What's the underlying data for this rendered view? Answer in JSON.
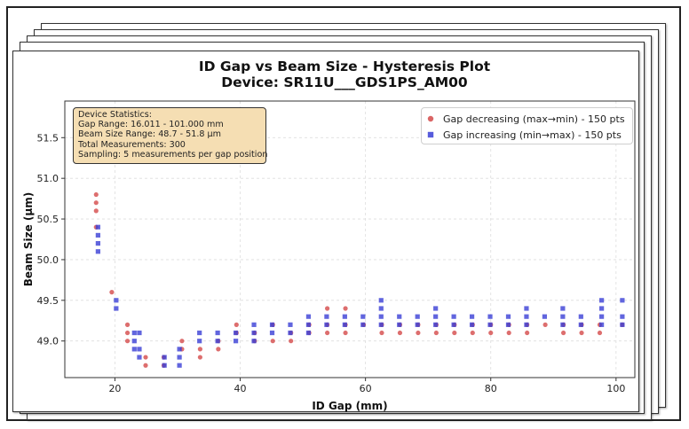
{
  "title": "ID Gap vs Beam Size - Hysteresis Plot",
  "subtitle": "Device: SR11U___GDS1PS_AM00",
  "stats": {
    "heading": "Device Statistics:",
    "lines": [
      "Gap Range: 16.011 - 101.000 mm",
      "Beam Size Range: 48.7 - 51.8 μm",
      "Total Measurements: 300",
      "Sampling: 5 measurements per gap position"
    ]
  },
  "colors": {
    "decreasing": "#d44a4a",
    "increasing": "#3a3fd6",
    "stats_bg": "#f5deb3",
    "grid": "#dddddd"
  },
  "chart_data": {
    "type": "scatter",
    "title": "ID Gap vs Beam Size - Hysteresis Plot",
    "subtitle": "Device: SR11U___GDS1PS_AM00",
    "xlabel": "ID Gap (mm)",
    "ylabel": "Beam Size (μm)",
    "xlim": [
      12,
      103
    ],
    "ylim": [
      48.55,
      51.95
    ],
    "xticks": [
      20,
      40,
      60,
      80,
      100
    ],
    "yticks": [
      49.0,
      49.5,
      50.0,
      50.5,
      51.0,
      51.5
    ],
    "xtick_labels": [
      "20",
      "40",
      "60",
      "80",
      "100"
    ],
    "ytick_labels": [
      "49.0",
      "49.5",
      "50.0",
      "50.5",
      "51.0",
      "51.5"
    ],
    "grid": true,
    "legend_position": "top-right",
    "series": [
      {
        "name": "Gap decreasing (max→min) - 150 pts",
        "marker": "circle",
        "points": [
          [
            17.0,
            50.8
          ],
          [
            17.0,
            50.7
          ],
          [
            17.0,
            50.6
          ],
          [
            17.0,
            50.4
          ],
          [
            19.5,
            49.6
          ],
          [
            22.0,
            49.2
          ],
          [
            22.0,
            49.1
          ],
          [
            22.0,
            49.0
          ],
          [
            24.9,
            48.8
          ],
          [
            24.9,
            48.7
          ],
          [
            27.8,
            48.8
          ],
          [
            27.8,
            48.7
          ],
          [
            30.7,
            49.0
          ],
          [
            30.7,
            48.9
          ],
          [
            33.6,
            48.9
          ],
          [
            33.6,
            48.8
          ],
          [
            36.5,
            49.0
          ],
          [
            36.5,
            48.9
          ],
          [
            39.4,
            49.2
          ],
          [
            39.4,
            49.1
          ],
          [
            42.3,
            49.1
          ],
          [
            42.3,
            49.0
          ],
          [
            45.2,
            49.2
          ],
          [
            45.2,
            49.0
          ],
          [
            48.1,
            49.1
          ],
          [
            48.1,
            49.0
          ],
          [
            51.0,
            49.2
          ],
          [
            51.0,
            49.1
          ],
          [
            53.9,
            49.4
          ],
          [
            53.9,
            49.2
          ],
          [
            53.9,
            49.1
          ],
          [
            56.8,
            49.4
          ],
          [
            56.8,
            49.2
          ],
          [
            56.8,
            49.1
          ],
          [
            59.7,
            49.2
          ],
          [
            62.6,
            49.2
          ],
          [
            62.6,
            49.1
          ],
          [
            65.5,
            49.2
          ],
          [
            65.5,
            49.1
          ],
          [
            68.4,
            49.2
          ],
          [
            68.4,
            49.1
          ],
          [
            71.3,
            49.2
          ],
          [
            71.3,
            49.1
          ],
          [
            74.2,
            49.2
          ],
          [
            74.2,
            49.1
          ],
          [
            77.1,
            49.2
          ],
          [
            77.1,
            49.1
          ],
          [
            80.0,
            49.2
          ],
          [
            80.0,
            49.1
          ],
          [
            82.9,
            49.2
          ],
          [
            82.9,
            49.1
          ],
          [
            85.8,
            49.2
          ],
          [
            85.8,
            49.1
          ],
          [
            88.7,
            49.2
          ],
          [
            91.6,
            49.2
          ],
          [
            91.6,
            49.1
          ],
          [
            94.5,
            49.2
          ],
          [
            94.5,
            49.1
          ],
          [
            97.4,
            49.2
          ],
          [
            97.4,
            49.1
          ],
          [
            101.0,
            49.2
          ]
        ]
      },
      {
        "name": "Gap increasing (min→max) - 150 pts",
        "marker": "square",
        "points": [
          [
            17.3,
            50.4
          ],
          [
            17.3,
            50.3
          ],
          [
            17.3,
            50.2
          ],
          [
            17.3,
            50.1
          ],
          [
            20.2,
            49.5
          ],
          [
            20.2,
            49.4
          ],
          [
            23.1,
            49.1
          ],
          [
            23.1,
            49.0
          ],
          [
            23.1,
            48.9
          ],
          [
            23.9,
            49.1
          ],
          [
            23.9,
            48.9
          ],
          [
            23.9,
            48.8
          ],
          [
            27.9,
            48.8
          ],
          [
            27.9,
            48.7
          ],
          [
            30.3,
            48.9
          ],
          [
            30.3,
            48.8
          ],
          [
            30.3,
            48.7
          ],
          [
            33.5,
            49.1
          ],
          [
            33.5,
            49.0
          ],
          [
            36.4,
            49.1
          ],
          [
            36.4,
            49.0
          ],
          [
            39.3,
            49.1
          ],
          [
            39.3,
            49.0
          ],
          [
            42.2,
            49.2
          ],
          [
            42.2,
            49.1
          ],
          [
            42.2,
            49.0
          ],
          [
            45.1,
            49.2
          ],
          [
            45.1,
            49.1
          ],
          [
            48.0,
            49.2
          ],
          [
            48.0,
            49.1
          ],
          [
            50.9,
            49.3
          ],
          [
            50.9,
            49.2
          ],
          [
            50.9,
            49.1
          ],
          [
            53.8,
            49.3
          ],
          [
            53.8,
            49.2
          ],
          [
            56.7,
            49.3
          ],
          [
            56.7,
            49.2
          ],
          [
            59.6,
            49.3
          ],
          [
            59.6,
            49.2
          ],
          [
            62.5,
            49.5
          ],
          [
            62.5,
            49.4
          ],
          [
            62.5,
            49.3
          ],
          [
            62.5,
            49.2
          ],
          [
            65.4,
            49.3
          ],
          [
            65.4,
            49.2
          ],
          [
            68.3,
            49.3
          ],
          [
            68.3,
            49.2
          ],
          [
            71.2,
            49.4
          ],
          [
            71.2,
            49.3
          ],
          [
            71.2,
            49.2
          ],
          [
            74.1,
            49.3
          ],
          [
            74.1,
            49.2
          ],
          [
            77.0,
            49.3
          ],
          [
            77.0,
            49.2
          ],
          [
            79.9,
            49.3
          ],
          [
            79.9,
            49.2
          ],
          [
            82.8,
            49.3
          ],
          [
            82.8,
            49.2
          ],
          [
            85.7,
            49.4
          ],
          [
            85.7,
            49.3
          ],
          [
            85.7,
            49.2
          ],
          [
            88.6,
            49.3
          ],
          [
            91.5,
            49.4
          ],
          [
            91.5,
            49.3
          ],
          [
            91.5,
            49.2
          ],
          [
            94.4,
            49.3
          ],
          [
            94.4,
            49.2
          ],
          [
            97.7,
            49.5
          ],
          [
            97.7,
            49.4
          ],
          [
            97.7,
            49.3
          ],
          [
            97.7,
            49.2
          ],
          [
            101.0,
            49.5
          ],
          [
            101.0,
            49.3
          ],
          [
            101.0,
            49.2
          ]
        ]
      }
    ]
  }
}
